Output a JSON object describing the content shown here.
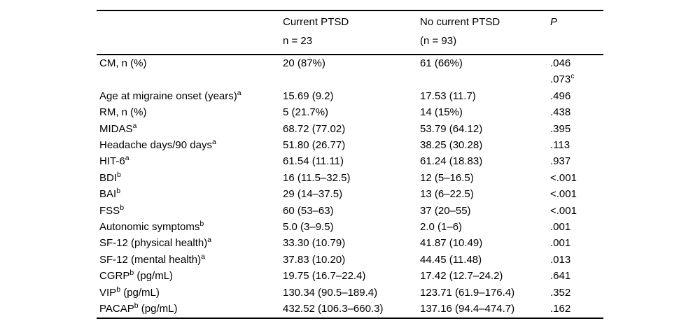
{
  "colors": {
    "text": "#000000",
    "background": "#ffffff",
    "rule": "#000000"
  },
  "table": {
    "header": {
      "current_line1": "Current PTSD",
      "current_line2": "n = 23",
      "no_current_line1": "No current PTSD",
      "no_current_line2": "(n = 93)",
      "p": "P"
    },
    "rows": [
      {
        "label": "CM, n (%)",
        "label_sup": "",
        "label_suffix": "",
        "current": "20 (87%)",
        "no_current": "61 (66%)",
        "p": ".046",
        "p2": ".073",
        "p2_sup": "c"
      },
      {
        "label": "Age at migraine onset (years)",
        "label_sup": "a",
        "label_suffix": "",
        "current": "15.69 (9.2)",
        "no_current": "17.53 (11.7)",
        "p": ".496"
      },
      {
        "label": "RM, n (%)",
        "label_sup": "",
        "label_suffix": "",
        "current": "5 (21.7%)",
        "no_current": "14 (15%)",
        "p": ".438"
      },
      {
        "label": "MIDAS",
        "label_sup": "a",
        "label_suffix": "",
        "current": "68.72 (77.02)",
        "no_current": "53.79 (64.12)",
        "p": ".395"
      },
      {
        "label": "Headache days/90 days",
        "label_sup": "a",
        "label_suffix": "",
        "current": "51.80 (26.77)",
        "no_current": "38.25 (30.28)",
        "p": ".113"
      },
      {
        "label": "HIT-6",
        "label_sup": "a",
        "label_suffix": "",
        "current": "61.54 (11.11)",
        "no_current": "61.24 (18.83)",
        "p": ".937"
      },
      {
        "label": "BDI",
        "label_sup": "b",
        "label_suffix": "",
        "current": "16 (11.5–32.5)",
        "no_current": "12 (5–16.5)",
        "p": "<.001"
      },
      {
        "label": "BAI",
        "label_sup": "b",
        "label_suffix": "",
        "current": "29 (14–37.5)",
        "no_current": "13 (6–22.5)",
        "p": "<.001"
      },
      {
        "label": "FSS",
        "label_sup": "b",
        "label_suffix": "",
        "current": "60 (53–63)",
        "no_current": "37 (20–55)",
        "p": "<.001"
      },
      {
        "label": "Autonomic symptoms",
        "label_sup": "b",
        "label_suffix": "",
        "current": "5.0 (3–9.5)",
        "no_current": "2.0 (1–6)",
        "p": ".001"
      },
      {
        "label": "SF-12 (physical health)",
        "label_sup": "a",
        "label_suffix": "",
        "current": "33.30 (10.79)",
        "no_current": "41.87 (10.49)",
        "p": ".001"
      },
      {
        "label": "SF-12 (mental health)",
        "label_sup": "a",
        "label_suffix": "",
        "current": "37.83 (10.20)",
        "no_current": "44.45 (11.48)",
        "p": ".013"
      },
      {
        "label": "CGRP",
        "label_sup": "b",
        "label_suffix": " (pg/mL)",
        "current": "19.75 (16.7–22.4)",
        "no_current": "17.42 (12.7–24.2)",
        "p": ".641"
      },
      {
        "label": "VIP",
        "label_sup": "b",
        "label_suffix": " (pg/mL)",
        "current": "130.34 (90.5–189.4)",
        "no_current": "123.71 (61.9–176.4)",
        "p": ".352"
      },
      {
        "label": "PACAP",
        "label_sup": "b",
        "label_suffix": " (pg/mL)",
        "current": "432.52 (106.3–660.3)",
        "no_current": "137.16 (94.4–474.7)",
        "p": ".162"
      }
    ]
  }
}
